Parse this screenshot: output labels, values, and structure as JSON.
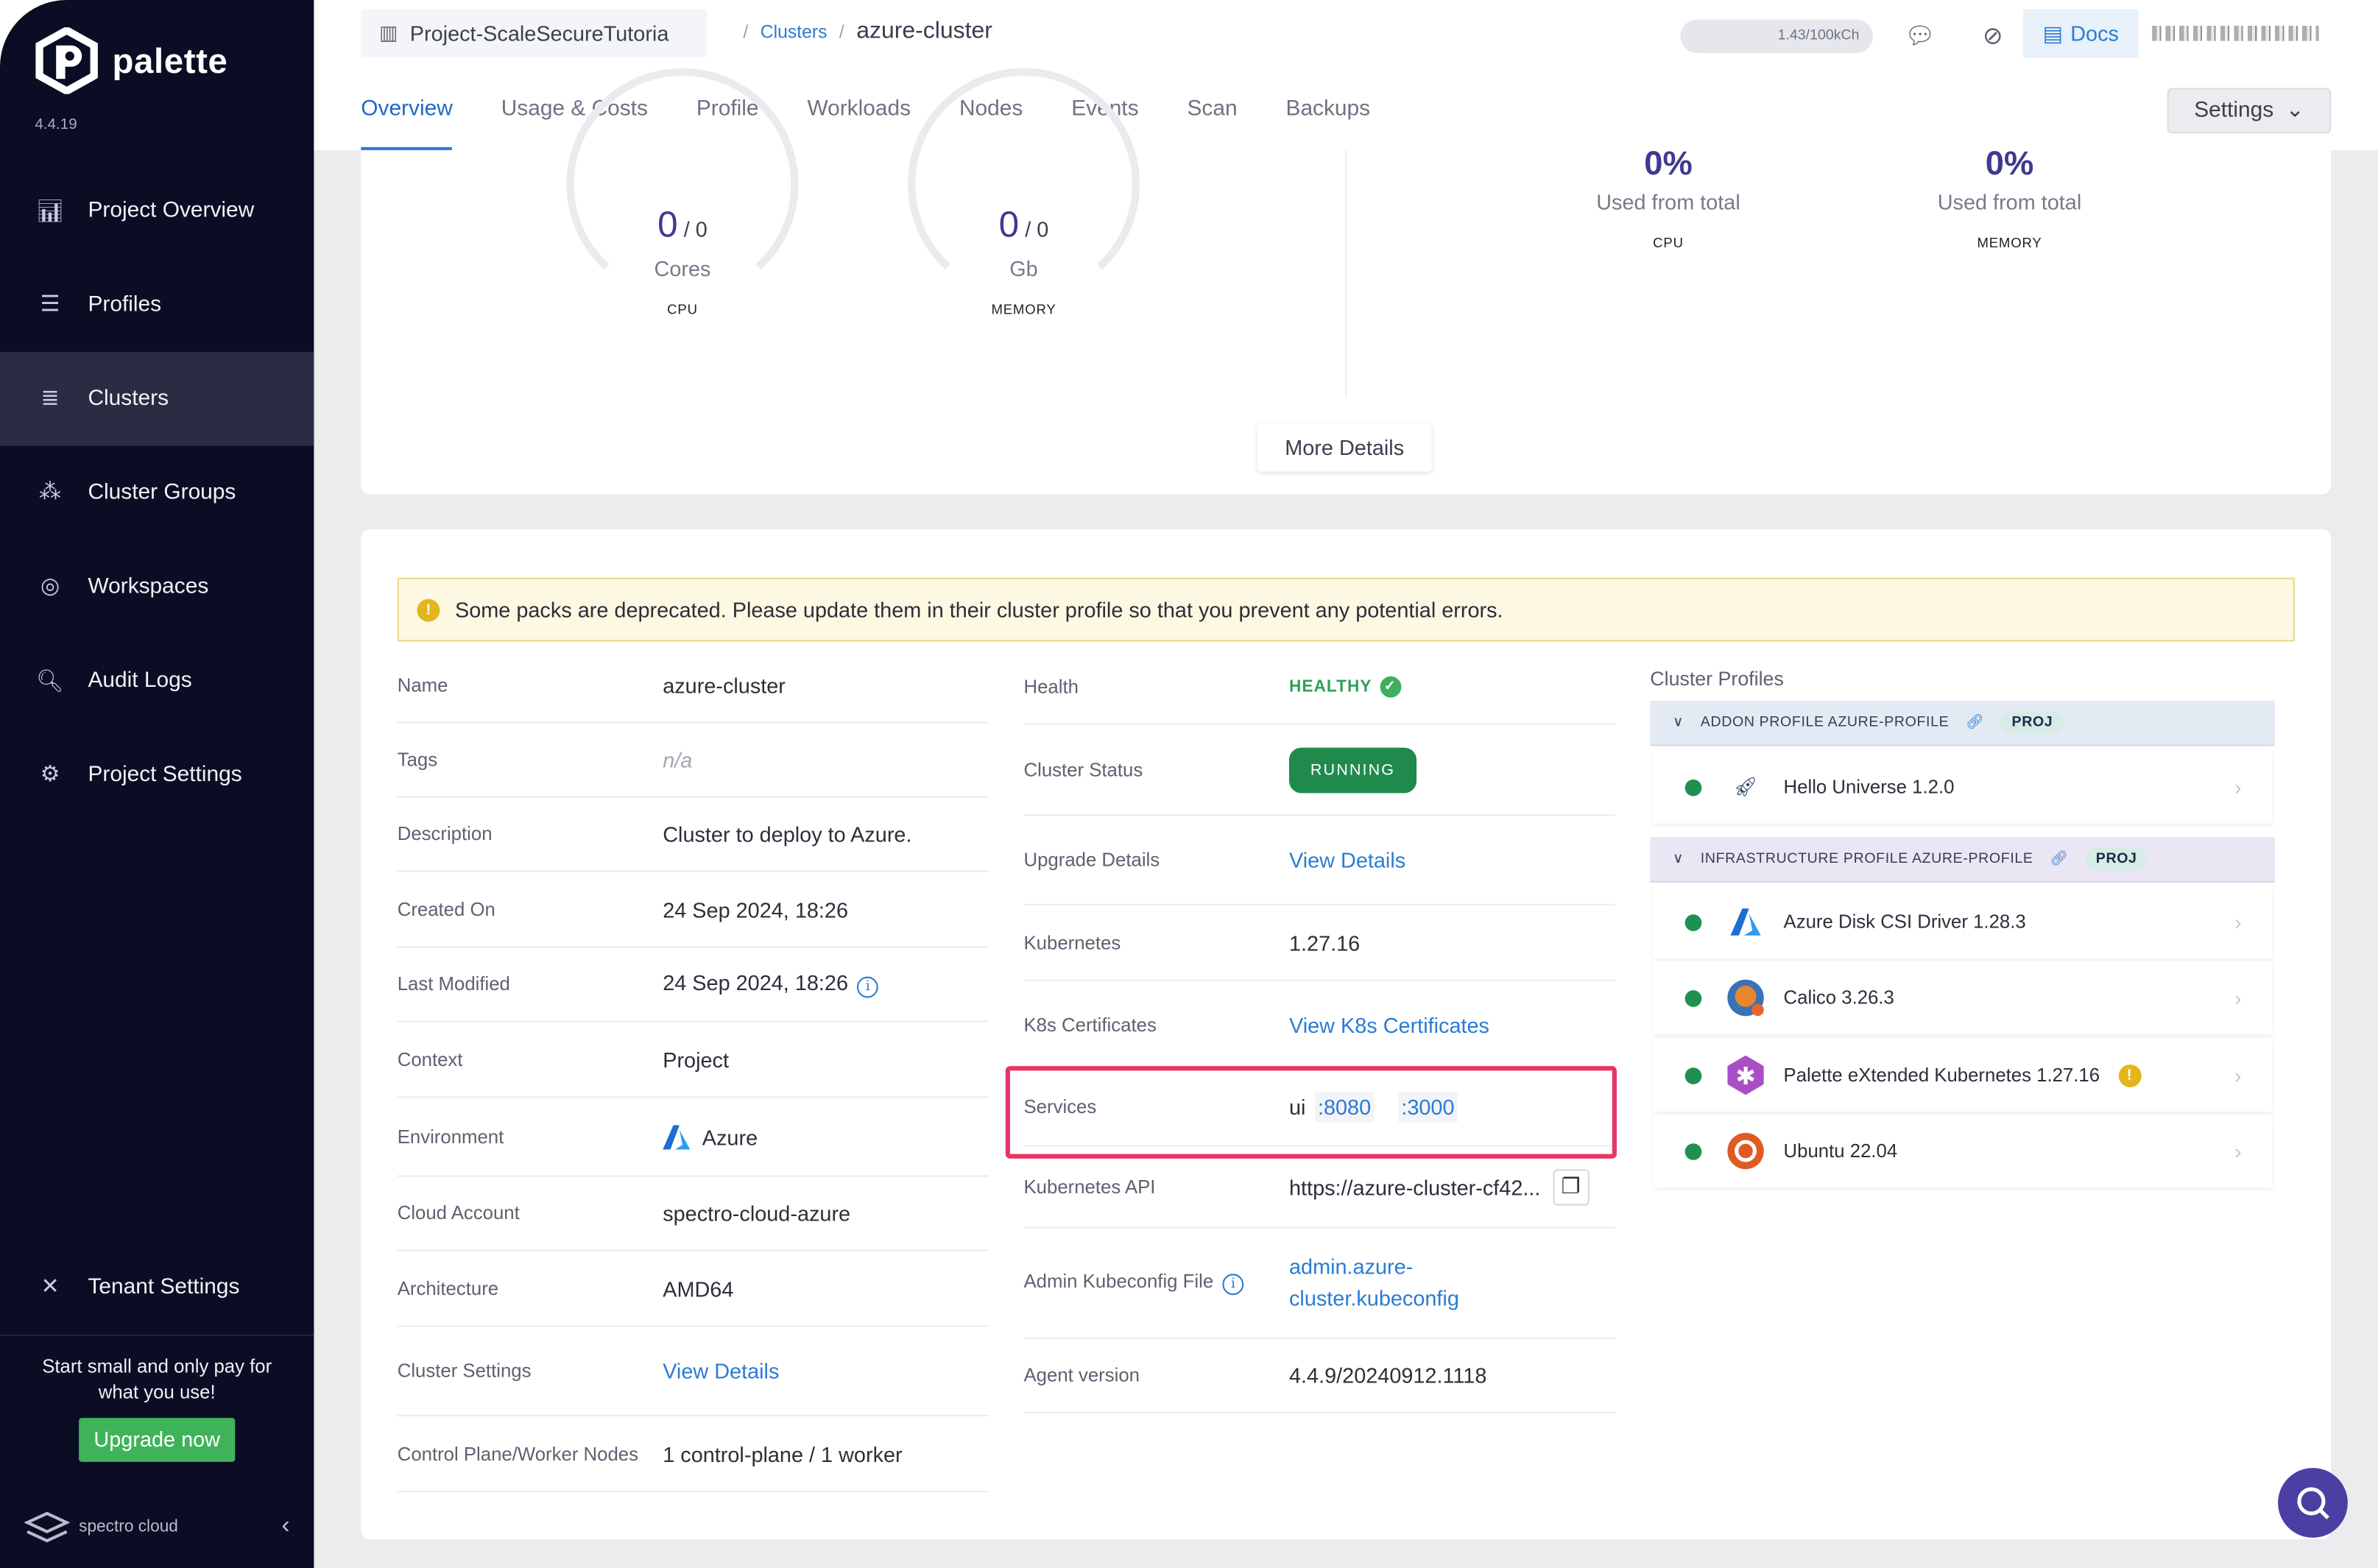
{
  "app": {
    "name": "palette",
    "version": "4.4.19"
  },
  "sidebar": {
    "items": [
      {
        "label": "Project Overview",
        "icon": "chart-icon"
      },
      {
        "label": "Profiles",
        "icon": "layers-icon"
      },
      {
        "label": "Clusters",
        "icon": "clusters-icon",
        "active": true
      },
      {
        "label": "Cluster Groups",
        "icon": "cluster-groups-icon"
      },
      {
        "label": "Workspaces",
        "icon": "workspaces-icon"
      },
      {
        "label": "Audit Logs",
        "icon": "audit-icon"
      },
      {
        "label": "Project Settings",
        "icon": "gear-icon"
      }
    ],
    "tenant_settings": "Tenant Settings",
    "upsell": "Start small and only pay for what you use!",
    "upgrade": "Upgrade now",
    "brand": "spectro cloud"
  },
  "header": {
    "project": "Project-ScaleSecureTutoria",
    "breadcrumb": [
      "Clusters",
      "azure-cluster"
    ],
    "usage": "1.43/100kCh",
    "docs": "Docs",
    "settings": "Settings"
  },
  "tabs": [
    "Overview",
    "Usage & Costs",
    "Profile",
    "Workloads",
    "Nodes",
    "Events",
    "Scan",
    "Backups"
  ],
  "resources": {
    "gauges": [
      {
        "used": "0",
        "total": "0",
        "unit": "Cores",
        "label": "CPU"
      },
      {
        "used": "0",
        "total": "0",
        "unit": "Gb",
        "label": "MEMORY"
      }
    ],
    "percent": [
      {
        "value": "0%",
        "caption": "Used from total",
        "label": "CPU"
      },
      {
        "value": "0%",
        "caption": "Used from total",
        "label": "MEMORY"
      }
    ],
    "more": "More Details"
  },
  "warning": "Some packs are deprecated. Please update them in their cluster profile so that you prevent any potential errors.",
  "details": [
    {
      "label": "Name",
      "value": "azure-cluster"
    },
    {
      "label": "Tags",
      "value": "n/a"
    },
    {
      "label": "Description",
      "value": "Cluster to deploy to Azure."
    },
    {
      "label": "Created On",
      "value": "24 Sep 2024, 18:26"
    },
    {
      "label": "Last Modified",
      "value": "24 Sep 2024, 18:26"
    },
    {
      "label": "Context",
      "value": "Project"
    },
    {
      "label": "Environment",
      "value": "Azure"
    },
    {
      "label": "Cloud Account",
      "value": "spectro-cloud-azure"
    },
    {
      "label": "Architecture",
      "value": "AMD64"
    },
    {
      "label": "Cluster Settings",
      "value": "View Details"
    },
    {
      "label": "Control Plane/Worker Nodes",
      "value": "1 control-plane / 1 worker"
    }
  ],
  "status": {
    "health_label": "Health",
    "health": "HEALTHY",
    "status_label": "Cluster Status",
    "status": "RUNNING",
    "upgrade_label": "Upgrade Details",
    "upgrade": "View Details",
    "k8s_label": "Kubernetes",
    "k8s": "1.27.16",
    "certs_label": "K8s Certificates",
    "certs": "View K8s Certificates",
    "services_label": "Services",
    "service_name": "ui",
    "ports": [
      ":8080",
      ":3000"
    ],
    "api_label": "Kubernetes API",
    "api": "https://azure-cluster-cf42...",
    "kubeconfig_label": "Admin Kubeconfig File",
    "kubeconfig": "admin.azure-cluster.kubeconfig",
    "agent_label": "Agent version",
    "agent": "4.4.9/20240912.1118"
  },
  "cluster_profiles": {
    "title": "Cluster Profiles",
    "groups": [
      {
        "title": "ADDON PROFILE AZURE-PROFILE",
        "badge": "PROJ",
        "packs": [
          "Hello Universe 1.2.0"
        ]
      },
      {
        "title": "INFRASTRUCTURE PROFILE AZURE-PROFILE",
        "badge": "PROJ",
        "packs": [
          "Azure Disk CSI Driver 1.28.3",
          "Calico 3.26.3",
          "Palette eXtended Kubernetes 1.27.16",
          "Ubuntu 22.04"
        ]
      }
    ]
  },
  "colors": {
    "sidebar": "#0b0d24",
    "accent": "#2a7bd4",
    "healthy": "#1e9150",
    "highlight": "#e83567"
  }
}
